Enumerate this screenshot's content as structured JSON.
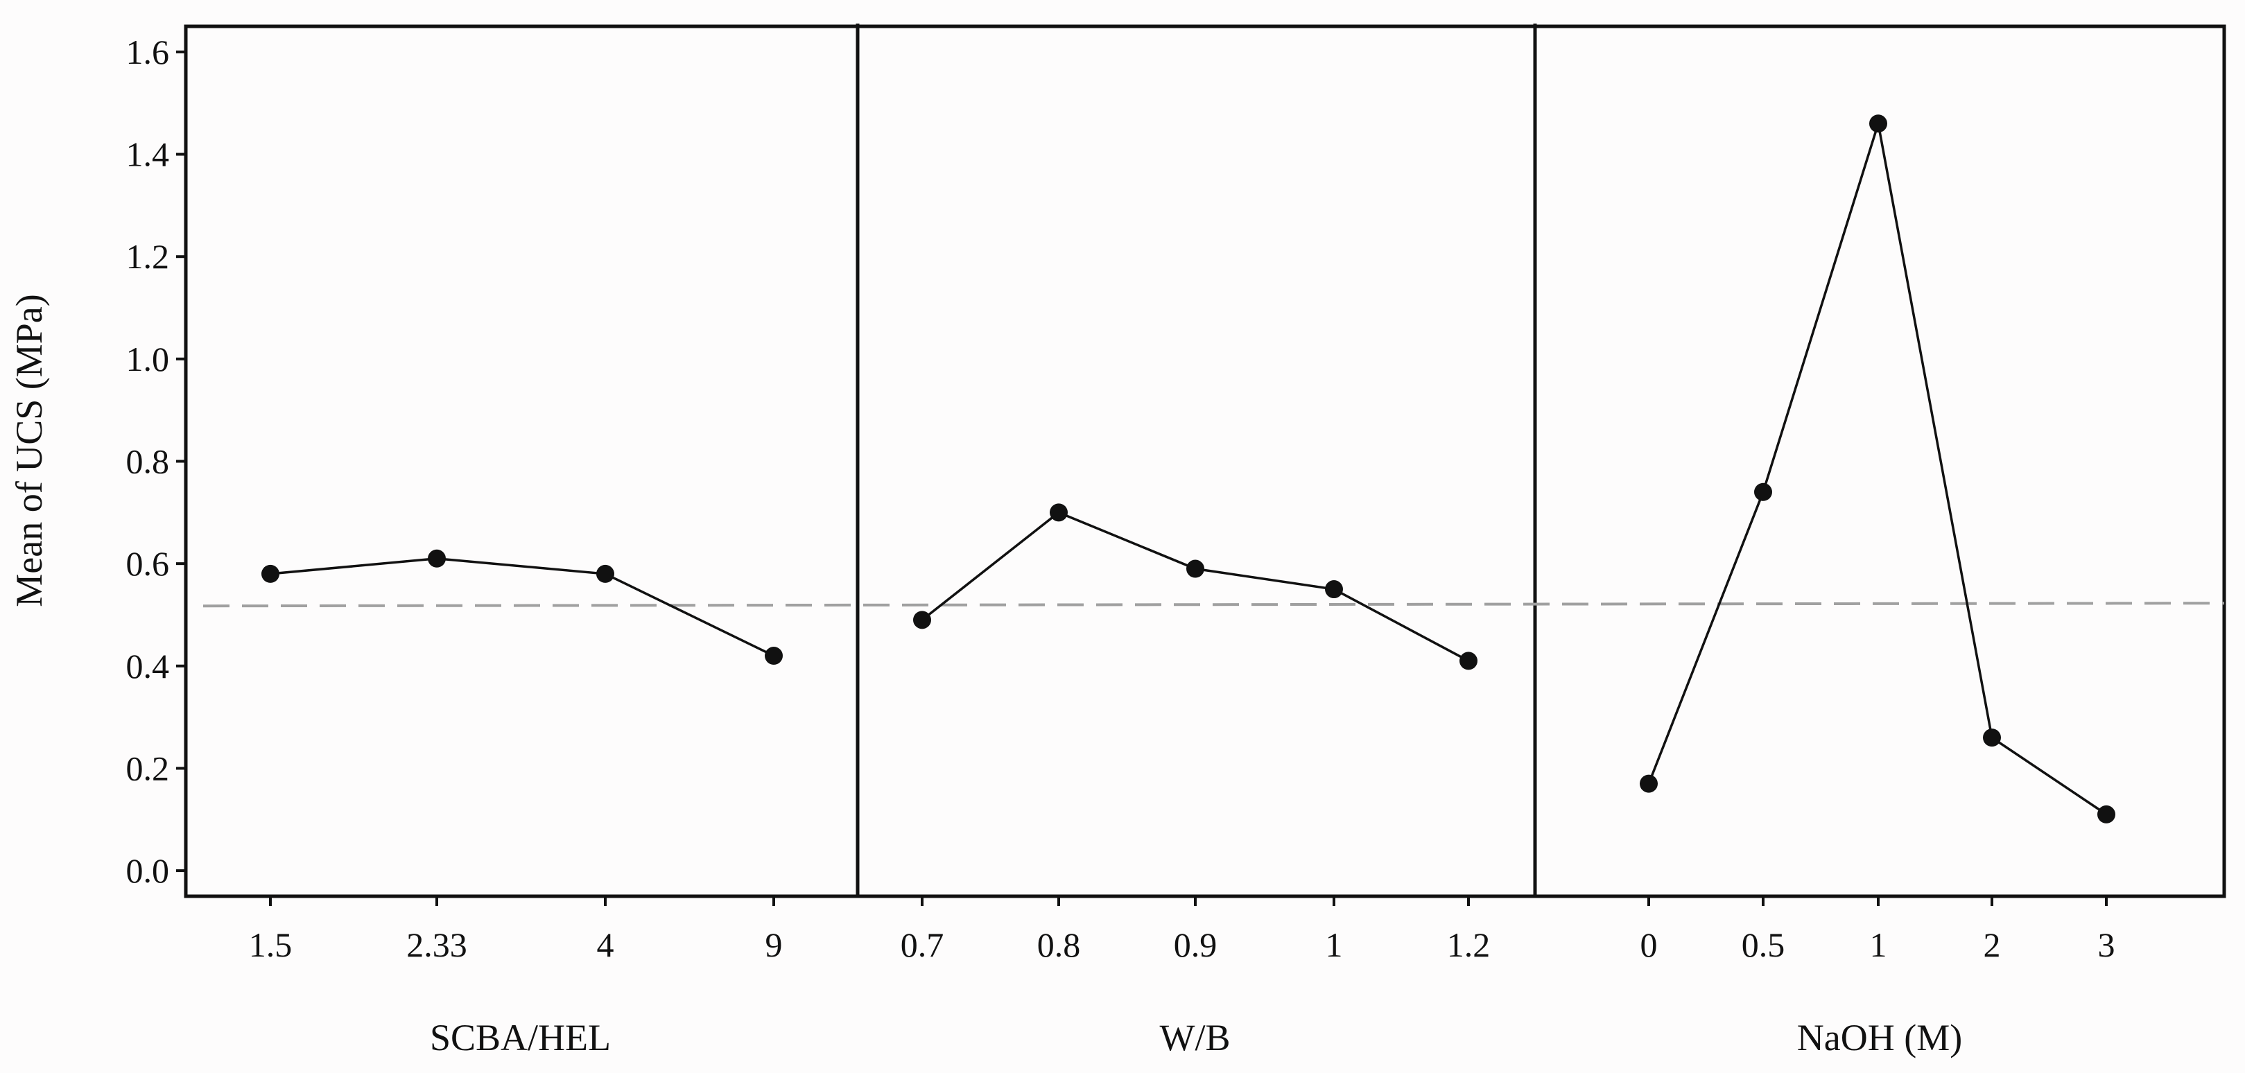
{
  "chart_data": {
    "type": "line",
    "ylabel": "Mean of UCS (MPa)",
    "ylim": [
      -0.05,
      1.65
    ],
    "y_ticks": [
      "0.0",
      "0.2",
      "0.4",
      "0.6",
      "0.8",
      "1.0",
      "1.2",
      "1.4",
      "1.6"
    ],
    "reference_line": 0.52,
    "grid": false,
    "panels": [
      {
        "xlabel": "SCBA/HEL",
        "categories": [
          "1.5",
          "2.33",
          "4",
          "9"
        ],
        "values": [
          0.58,
          0.61,
          0.58,
          0.42
        ]
      },
      {
        "xlabel": "W/B",
        "categories": [
          "0.7",
          "0.8",
          "0.9",
          "1",
          "1.2"
        ],
        "values": [
          0.49,
          0.7,
          0.59,
          0.55,
          0.41
        ]
      },
      {
        "xlabel": "NaOH (M)",
        "categories": [
          "0",
          "0.5",
          "1",
          "2",
          "3"
        ],
        "values": [
          0.17,
          0.74,
          1.46,
          0.26,
          0.11
        ]
      }
    ]
  },
  "colors": {
    "line": "#111111",
    "marker": "#111111",
    "reference_line": "#a0a0a0",
    "frame": "#111111",
    "background": "#fdfcfc"
  }
}
